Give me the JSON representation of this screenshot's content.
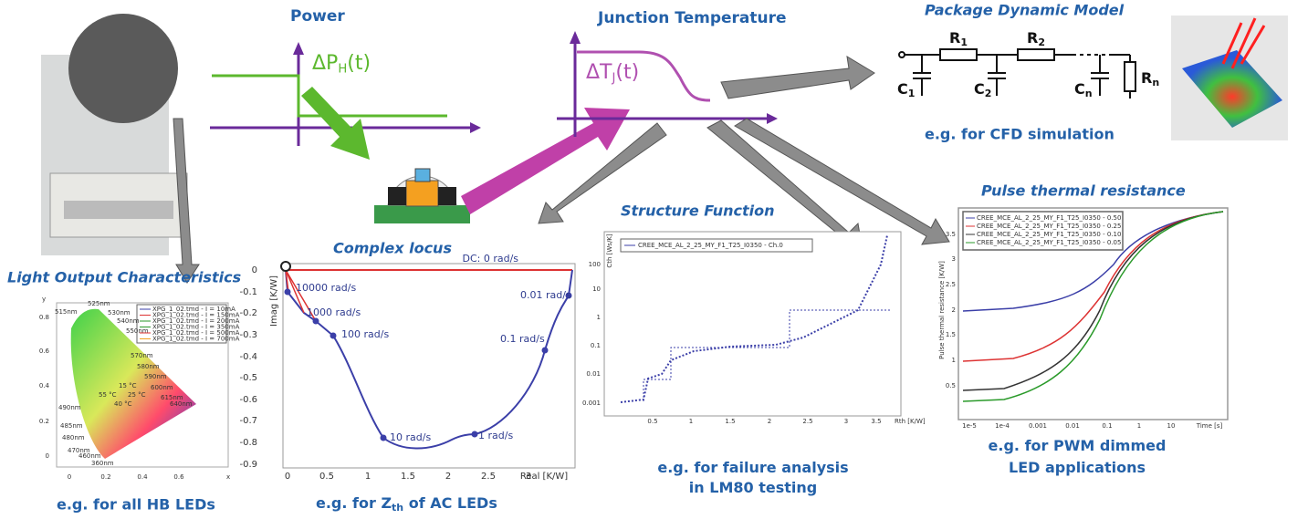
{
  "top": {
    "power": "Power",
    "power_symbol": {
      "base": "ΔP",
      "sub": "H",
      "tail": "(t)"
    },
    "junction": "Junction Temperature",
    "junction_symbol": {
      "base": "ΔT",
      "sub": "J",
      "tail": "(t)"
    },
    "package": "Package Dynamic Model",
    "circuit": {
      "r1": "R",
      "r1_sub": "1",
      "r2": "R",
      "r2_sub": "2",
      "c1": "C",
      "c1_sub": "1",
      "c2": "C",
      "c2_sub": "2",
      "cn": "C",
      "cn_sub": "n",
      "rn": "R",
      "rn_sub": "n"
    },
    "cfd": "e.g. for CFD simulation"
  },
  "light": {
    "title": "Light Output Characteristics",
    "caption": "e.g. for all HB LEDs",
    "y_axis": "y",
    "x_axis": "x",
    "yticks": [
      "0.8",
      "0.6",
      "0.4",
      "0.2",
      "0"
    ],
    "xticks": [
      "0",
      "0.2",
      "0.4",
      "0.6"
    ],
    "wavelengths": [
      "525nm",
      "530nm",
      "515nm",
      "540nm",
      "550nm",
      "570nm",
      "580nm",
      "590nm",
      "600nm",
      "615nm",
      "640nm",
      "490nm",
      "485nm",
      "480nm",
      "470nm",
      "460nm",
      "360nm"
    ],
    "temps": [
      "15 °C",
      "55 °C",
      "25 °C",
      "40 °C"
    ],
    "legend": [
      "XPG_1_02.tmd - I = 10mA",
      "XPG_1_02.tmd - I = 150mA",
      "XPG_1_02.tmd - I = 200mA",
      "XPG_1_02.tmd - I = 350mA",
      "XPG_1_02.tmd - I = 500mA",
      "XPG_1_02.tmd - I = 700mA"
    ]
  },
  "locus": {
    "title": "Complex locus",
    "caption": {
      "a": "e.g. for Z",
      "sub": "th",
      "b": " of AC LEDs"
    },
    "y_axis": "Imag  [K/W]",
    "x_axis": "Real  [K/W]",
    "yticks": [
      "0",
      "-0.1",
      "-0.2",
      "-0.3",
      "-0.4",
      "-0.5",
      "-0.6",
      "-0.7",
      "-0.8",
      "-0.9"
    ],
    "xticks": [
      "0",
      "0.5",
      "1",
      "1.5",
      "2",
      "2.5",
      "3"
    ],
    "points": [
      "DC: 0 rad/s",
      "10000 rad/s",
      "1000 rad/s",
      "100 rad/s",
      "10 rad/s",
      "1 rad/s",
      "0.1 rad/s",
      "0.01 rad/s"
    ]
  },
  "structure": {
    "title": "Structure Function",
    "caption": "e.g. for failure analysis in LM80 testing",
    "y_axis": "Cth [Ws/K]",
    "x_axis": "Rth  [K/W]",
    "yticks": [
      "100",
      "10",
      "1",
      "0.1",
      "0.01",
      "0.001"
    ],
    "xticks": [
      "0.5",
      "1",
      "1.5",
      "2",
      "2.5",
      "3",
      "3.5"
    ],
    "legend": "CREE_MCE_AL_2_25_MY_F1_T25_I0350 - Ch.0"
  },
  "pulse": {
    "title": "Pulse thermal resistance",
    "caption": "e.g. for PWM dimmed LED applications",
    "y_axis": "Pulse thermal resistance [K/W]",
    "x_axis": "Time [s]",
    "yticks": [
      "3.5",
      "3",
      "2.5",
      "2",
      "1.5",
      "1",
      "0.5"
    ],
    "xticks": [
      "1e-5",
      "1e-4",
      "0.001",
      "0.01",
      "0.1",
      "1",
      "10"
    ],
    "legend": [
      "CREE_MCE_AL_2_25_MY_F1_T25_I0350 - 0.50",
      "CREE_MCE_AL_2_25_MY_F1_T25_I0350 - 0.25",
      "CREE_MCE_AL_2_25_MY_F1_T25_I0350 - 0.10",
      "CREE_MCE_AL_2_25_MY_F1_T25_I0350 - 0.05"
    ]
  }
}
